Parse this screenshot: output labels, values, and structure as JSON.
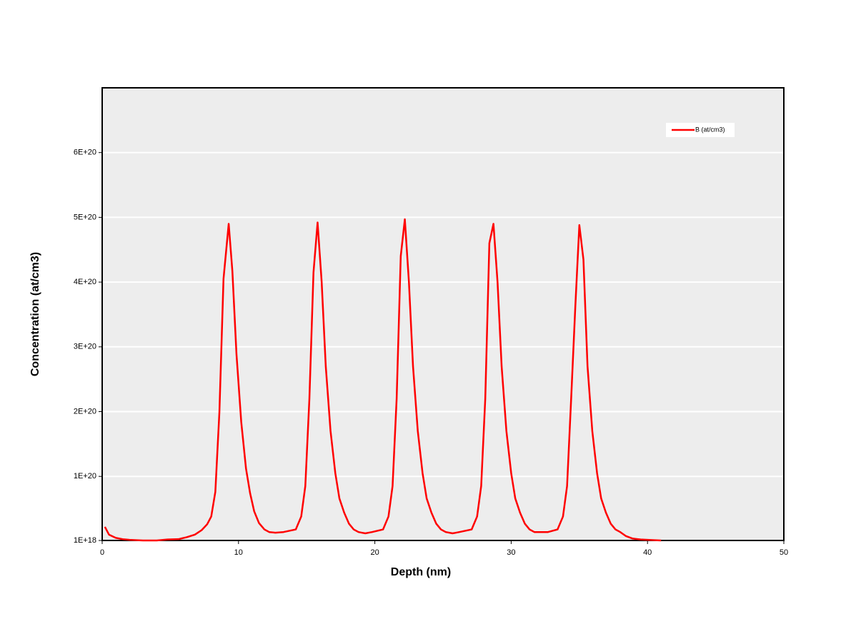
{
  "chart_data": {
    "type": "line",
    "xlabel": "Depth (nm)",
    "ylabel": "Concentration (at/cm3)",
    "x": [
      0.2,
      0.5,
      1.0,
      1.5,
      2.0,
      3.0,
      4.0,
      4.8,
      5.6,
      6.2,
      6.8,
      7.3,
      7.7,
      8.0,
      8.3,
      8.6,
      8.9,
      9.28,
      9.55,
      9.85,
      10.2,
      10.55,
      10.85,
      11.15,
      11.5,
      11.9,
      12.25,
      12.7,
      13.3,
      14.2,
      14.6,
      14.9,
      15.2,
      15.5,
      15.8,
      16.1,
      16.4,
      16.75,
      17.1,
      17.4,
      17.75,
      18.1,
      18.45,
      18.8,
      19.3,
      19.8,
      20.6,
      21.0,
      21.3,
      21.6,
      21.9,
      22.2,
      22.5,
      22.8,
      23.15,
      23.5,
      23.8,
      24.15,
      24.5,
      24.85,
      25.2,
      25.7,
      26.2,
      27.1,
      27.5,
      27.8,
      28.1,
      28.4,
      28.7,
      29.0,
      29.3,
      29.65,
      30.0,
      30.3,
      30.65,
      31.0,
      31.35,
      31.7,
      32.2,
      32.7,
      33.4,
      33.8,
      34.1,
      34.4,
      34.7,
      35.0,
      35.3,
      35.6,
      35.95,
      36.3,
      36.6,
      36.95,
      37.3,
      37.65,
      38.0,
      38.4,
      38.9,
      39.5,
      40.0,
      41.0
    ],
    "series": [
      {
        "name": "B (at/cm3)",
        "color": "#ff0000",
        "values": [
          2.2e+19,
          1e+19,
          5e+18,
          3e+18,
          2e+18,
          1e+18,
          1e+18,
          2.5e+18,
          3e+18,
          6e+18,
          1e+19,
          1.7e+19,
          2.6e+19,
          3.8e+19,
          7.6e+19,
          2e+20,
          4.05e+20,
          4.9e+20,
          4.17e+20,
          2.89e+20,
          1.84e+20,
          1.12e+20,
          7.4e+19,
          4.6e+19,
          2.8e+19,
          1.8e+19,
          1.4e+19,
          1.3e+19,
          1.4e+19,
          1.8e+19,
          3.8e+19,
          8.5e+19,
          2.2e+20,
          4.15e+20,
          4.92e+20,
          4e+20,
          2.7e+20,
          1.7e+20,
          1.05e+20,
          6.6e+19,
          4.4e+19,
          2.7e+19,
          1.8e+19,
          1.4e+19,
          1.2e+19,
          1.4e+19,
          1.8e+19,
          3.8e+19,
          8.5e+19,
          2.2e+20,
          4.4e+20,
          4.97e+20,
          4e+20,
          2.7e+20,
          1.7e+20,
          1.05e+20,
          6.6e+19,
          4.4e+19,
          2.7e+19,
          1.8e+19,
          1.4e+19,
          1.2e+19,
          1.4e+19,
          1.8e+19,
          3.8e+19,
          8.5e+19,
          2.2e+20,
          4.6e+20,
          4.9e+20,
          4e+20,
          2.7e+20,
          1.7e+20,
          1.05e+20,
          6.6e+19,
          4.4e+19,
          2.7e+19,
          1.8e+19,
          1.4e+19,
          1.4e+19,
          1.4e+19,
          1.8e+19,
          3.8e+19,
          8.5e+19,
          2.2e+20,
          3.6e+20,
          4.88e+20,
          4.35e+20,
          2.7e+20,
          1.7e+20,
          1.05e+20,
          6.6e+19,
          4.4e+19,
          2.7e+19,
          1.8e+19,
          1.4e+19,
          8e+18,
          4e+18,
          2.5e+18,
          2e+18,
          1e+18
        ]
      }
    ],
    "xlim": [
      0,
      50
    ],
    "xticks": [
      0,
      10,
      20,
      30,
      40,
      50
    ],
    "ylim": [
      1e+18,
      7e+20
    ],
    "yticks": [
      {
        "value": 1e+18,
        "label": "1E+18"
      },
      {
        "value": 1e+20,
        "label": "1E+20"
      },
      {
        "value": 2e+20,
        "label": "2E+20"
      },
      {
        "value": 3e+20,
        "label": "3E+20"
      },
      {
        "value": 4e+20,
        "label": "4E+20"
      },
      {
        "value": 5e+20,
        "label": "5E+20"
      },
      {
        "value": 6e+20,
        "label": "6E+20"
      }
    ],
    "grid": true,
    "legend": "upper right"
  }
}
